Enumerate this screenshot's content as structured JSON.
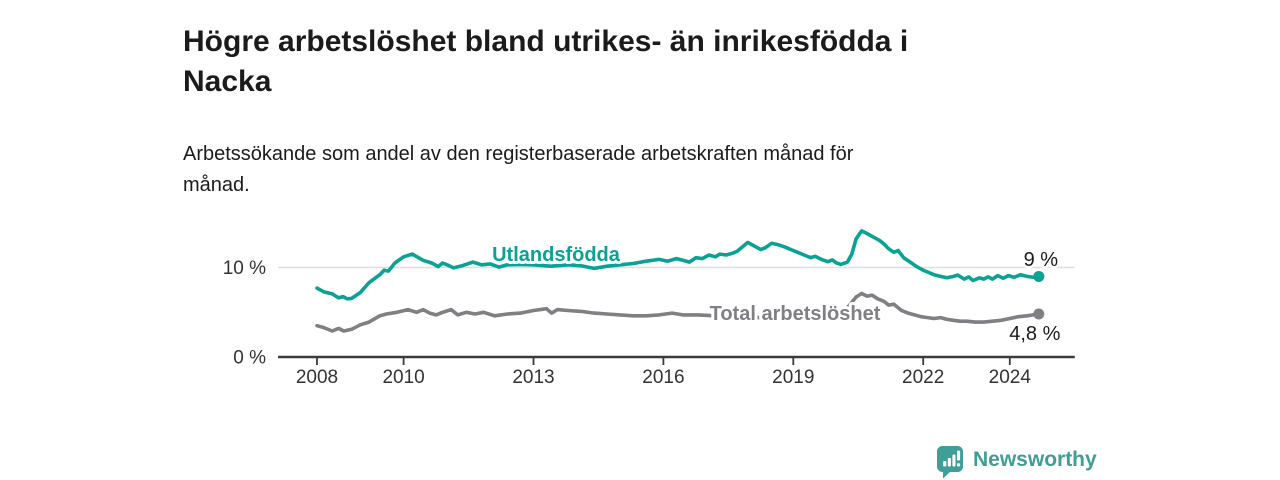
{
  "header": {
    "title": "Högre arbetslöshet bland utrikes- än inrikesfödda i Nacka",
    "title_lines": [
      "Högre arbetslöshet bland utrikes- än inrikesfödda i",
      "Nacka"
    ],
    "subtitle_lines": [
      "Arbetssökande som andel av den registerbaserade arbetskraften månad för",
      "månad."
    ]
  },
  "footer": {
    "brand": "Newsworthy",
    "brand_color": "#3f9e97",
    "logo_icon": "speech-bubble-bar-chart-icon"
  },
  "chart_data": {
    "type": "line",
    "title": "",
    "xlabel": "",
    "ylabel": "",
    "unit": "%",
    "grid": "horizontal-10-only",
    "x_axis": {
      "ticks": [
        2008,
        2010,
        2013,
        2016,
        2019,
        2022,
        2024
      ],
      "range": [
        2007.1,
        2025.5
      ]
    },
    "y_axis": {
      "ticks": [
        {
          "value": 0,
          "label": "0 %"
        },
        {
          "value": 10,
          "label": "10 %"
        }
      ],
      "range": [
        0,
        16
      ]
    },
    "colors": {
      "axis": "#3b3b3b",
      "tick_text": "#333333",
      "gridline": "#dedede",
      "end_label_text": "#1b1b1b"
    },
    "series": [
      {
        "name": "Utlandsfödda",
        "color": "#0aa294",
        "end_label": "9 %",
        "end_value": 9.0,
        "points": [
          [
            2008.0,
            7.7
          ],
          [
            2008.15,
            7.3
          ],
          [
            2008.35,
            7.05
          ],
          [
            2008.5,
            6.6
          ],
          [
            2008.6,
            6.75
          ],
          [
            2008.7,
            6.5
          ],
          [
            2008.8,
            6.55
          ],
          [
            2009.0,
            7.2
          ],
          [
            2009.2,
            8.3
          ],
          [
            2009.45,
            9.2
          ],
          [
            2009.55,
            9.7
          ],
          [
            2009.65,
            9.6
          ],
          [
            2009.8,
            10.5
          ],
          [
            2010.0,
            11.2
          ],
          [
            2010.2,
            11.5
          ],
          [
            2010.45,
            10.8
          ],
          [
            2010.65,
            10.5
          ],
          [
            2010.8,
            10.1
          ],
          [
            2010.9,
            10.5
          ],
          [
            2011.05,
            10.2
          ],
          [
            2011.15,
            9.95
          ],
          [
            2011.35,
            10.2
          ],
          [
            2011.6,
            10.6
          ],
          [
            2011.8,
            10.3
          ],
          [
            2012.0,
            10.4
          ],
          [
            2012.2,
            10.05
          ],
          [
            2012.4,
            10.3
          ],
          [
            2012.7,
            10.35
          ],
          [
            2013.0,
            10.3
          ],
          [
            2013.4,
            10.15
          ],
          [
            2013.8,
            10.3
          ],
          [
            2014.1,
            10.2
          ],
          [
            2014.4,
            9.9
          ],
          [
            2014.7,
            10.15
          ],
          [
            2015.0,
            10.3
          ],
          [
            2015.3,
            10.45
          ],
          [
            2015.6,
            10.7
          ],
          [
            2015.9,
            10.9
          ],
          [
            2016.1,
            10.7
          ],
          [
            2016.3,
            11.0
          ],
          [
            2016.45,
            10.8
          ],
          [
            2016.6,
            10.6
          ],
          [
            2016.75,
            11.1
          ],
          [
            2016.9,
            11.0
          ],
          [
            2017.05,
            11.4
          ],
          [
            2017.2,
            11.2
          ],
          [
            2017.3,
            11.5
          ],
          [
            2017.45,
            11.4
          ],
          [
            2017.6,
            11.6
          ],
          [
            2017.7,
            11.8
          ],
          [
            2017.85,
            12.4
          ],
          [
            2017.95,
            12.8
          ],
          [
            2018.1,
            12.4
          ],
          [
            2018.25,
            12.0
          ],
          [
            2018.35,
            12.2
          ],
          [
            2018.5,
            12.7
          ],
          [
            2018.65,
            12.55
          ],
          [
            2018.8,
            12.3
          ],
          [
            2018.95,
            12.0
          ],
          [
            2019.1,
            11.7
          ],
          [
            2019.25,
            11.4
          ],
          [
            2019.4,
            11.1
          ],
          [
            2019.5,
            11.25
          ],
          [
            2019.65,
            10.9
          ],
          [
            2019.8,
            10.65
          ],
          [
            2019.9,
            10.85
          ],
          [
            2020.0,
            10.5
          ],
          [
            2020.1,
            10.35
          ],
          [
            2020.25,
            10.6
          ],
          [
            2020.35,
            11.5
          ],
          [
            2020.45,
            13.2
          ],
          [
            2020.58,
            14.1
          ],
          [
            2020.7,
            13.8
          ],
          [
            2020.85,
            13.4
          ],
          [
            2021.0,
            13.0
          ],
          [
            2021.1,
            12.6
          ],
          [
            2021.2,
            12.1
          ],
          [
            2021.32,
            11.7
          ],
          [
            2021.42,
            11.9
          ],
          [
            2021.55,
            11.1
          ],
          [
            2021.7,
            10.6
          ],
          [
            2021.85,
            10.1
          ],
          [
            2022.0,
            9.7
          ],
          [
            2022.1,
            9.5
          ],
          [
            2022.25,
            9.2
          ],
          [
            2022.4,
            9.0
          ],
          [
            2022.55,
            8.85
          ],
          [
            2022.7,
            9.0
          ],
          [
            2022.8,
            9.15
          ],
          [
            2022.95,
            8.7
          ],
          [
            2023.05,
            8.95
          ],
          [
            2023.15,
            8.55
          ],
          [
            2023.3,
            8.85
          ],
          [
            2023.4,
            8.7
          ],
          [
            2023.5,
            8.95
          ],
          [
            2023.6,
            8.7
          ],
          [
            2023.72,
            9.1
          ],
          [
            2023.85,
            8.8
          ],
          [
            2023.97,
            9.1
          ],
          [
            2024.1,
            8.9
          ],
          [
            2024.25,
            9.2
          ],
          [
            2024.4,
            9.0
          ],
          [
            2024.55,
            8.9
          ],
          [
            2024.67,
            9.0
          ]
        ]
      },
      {
        "name": "Total arbetslöshet",
        "color": "#7f7f84",
        "end_label": "4,8 %",
        "end_value": 4.8,
        "points": [
          [
            2008.0,
            3.5
          ],
          [
            2008.15,
            3.3
          ],
          [
            2008.35,
            2.9
          ],
          [
            2008.5,
            3.2
          ],
          [
            2008.62,
            2.9
          ],
          [
            2008.8,
            3.1
          ],
          [
            2009.0,
            3.6
          ],
          [
            2009.2,
            3.9
          ],
          [
            2009.45,
            4.6
          ],
          [
            2009.6,
            4.8
          ],
          [
            2009.85,
            5.0
          ],
          [
            2010.1,
            5.3
          ],
          [
            2010.3,
            5.0
          ],
          [
            2010.45,
            5.3
          ],
          [
            2010.6,
            4.9
          ],
          [
            2010.75,
            4.7
          ],
          [
            2010.9,
            5.0
          ],
          [
            2011.1,
            5.3
          ],
          [
            2011.25,
            4.7
          ],
          [
            2011.45,
            5.0
          ],
          [
            2011.65,
            4.8
          ],
          [
            2011.85,
            5.0
          ],
          [
            2012.1,
            4.6
          ],
          [
            2012.4,
            4.8
          ],
          [
            2012.7,
            4.9
          ],
          [
            2013.0,
            5.2
          ],
          [
            2013.3,
            5.4
          ],
          [
            2013.42,
            4.9
          ],
          [
            2013.55,
            5.3
          ],
          [
            2013.8,
            5.2
          ],
          [
            2014.1,
            5.1
          ],
          [
            2014.4,
            4.9
          ],
          [
            2014.7,
            4.8
          ],
          [
            2015.0,
            4.7
          ],
          [
            2015.3,
            4.6
          ],
          [
            2015.6,
            4.6
          ],
          [
            2015.9,
            4.7
          ],
          [
            2016.2,
            4.9
          ],
          [
            2016.45,
            4.7
          ],
          [
            2016.8,
            4.7
          ],
          [
            2017.2,
            4.6
          ],
          [
            2017.6,
            4.5
          ],
          [
            2018.0,
            4.4
          ],
          [
            2018.4,
            4.4
          ],
          [
            2018.8,
            4.3
          ],
          [
            2019.2,
            4.2
          ],
          [
            2019.6,
            4.1
          ],
          [
            2019.9,
            4.3
          ],
          [
            2020.1,
            4.8
          ],
          [
            2020.3,
            5.8
          ],
          [
            2020.45,
            6.7
          ],
          [
            2020.58,
            7.1
          ],
          [
            2020.7,
            6.8
          ],
          [
            2020.82,
            6.9
          ],
          [
            2020.95,
            6.5
          ],
          [
            2021.1,
            6.2
          ],
          [
            2021.2,
            5.8
          ],
          [
            2021.32,
            5.9
          ],
          [
            2021.5,
            5.2
          ],
          [
            2021.65,
            4.9
          ],
          [
            2021.8,
            4.7
          ],
          [
            2021.95,
            4.5
          ],
          [
            2022.1,
            4.4
          ],
          [
            2022.25,
            4.3
          ],
          [
            2022.4,
            4.4
          ],
          [
            2022.55,
            4.2
          ],
          [
            2022.7,
            4.1
          ],
          [
            2022.85,
            4.0
          ],
          [
            2023.0,
            4.0
          ],
          [
            2023.2,
            3.9
          ],
          [
            2023.4,
            3.9
          ],
          [
            2023.6,
            4.0
          ],
          [
            2023.8,
            4.1
          ],
          [
            2024.0,
            4.3
          ],
          [
            2024.2,
            4.5
          ],
          [
            2024.4,
            4.6
          ],
          [
            2024.67,
            4.8
          ]
        ]
      }
    ]
  }
}
